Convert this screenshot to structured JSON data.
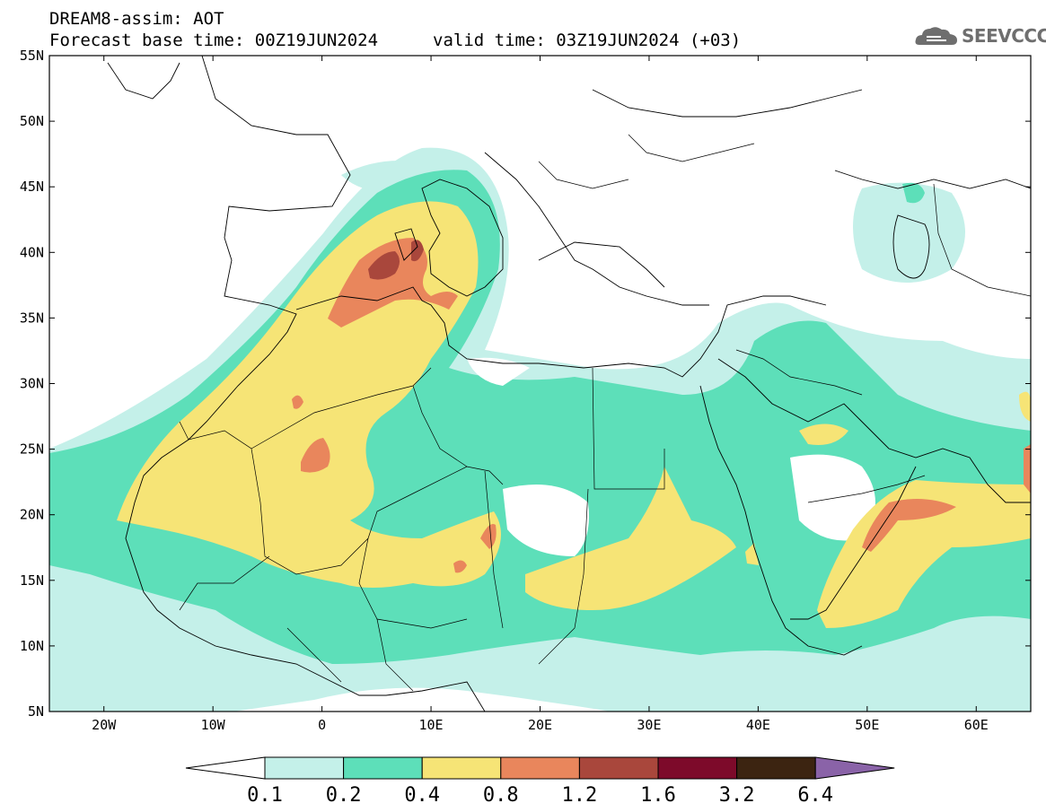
{
  "header": {
    "title_line1": "DREAM8-assim: AOT",
    "base_time": "Forecast base time: 00Z19JUN2024",
    "valid_time": "valid time: 03Z19JUN2024 (+03)",
    "logo_text": "SEEVCCC",
    "logo_icon": "cloud-icon"
  },
  "map": {
    "lon_range": [
      -25,
      65
    ],
    "lat_range": [
      5,
      55
    ],
    "lat_ticks": [
      {
        "v": 55,
        "label": "55N"
      },
      {
        "v": 50,
        "label": "50N"
      },
      {
        "v": 45,
        "label": "45N"
      },
      {
        "v": 40,
        "label": "40N"
      },
      {
        "v": 35,
        "label": "35N"
      },
      {
        "v": 30,
        "label": "30N"
      },
      {
        "v": 25,
        "label": "25N"
      },
      {
        "v": 20,
        "label": "20N"
      },
      {
        "v": 15,
        "label": "15N"
      },
      {
        "v": 10,
        "label": "10N"
      },
      {
        "v": 5,
        "label": "5N"
      }
    ],
    "lon_ticks": [
      {
        "v": -20,
        "label": "20W"
      },
      {
        "v": -10,
        "label": "10W"
      },
      {
        "v": 0,
        "label": "0"
      },
      {
        "v": 10,
        "label": "10E"
      },
      {
        "v": 20,
        "label": "20E"
      },
      {
        "v": 30,
        "label": "30E"
      },
      {
        "v": 40,
        "label": "40E"
      },
      {
        "v": 50,
        "label": "50E"
      },
      {
        "v": 60,
        "label": "60E"
      }
    ]
  },
  "colorbar": {
    "levels": [
      "0.1",
      "0.2",
      "0.4",
      "0.8",
      "1.2",
      "1.6",
      "3.2",
      "6.4"
    ],
    "colors": [
      "#ffffff",
      "#c4f0e9",
      "#5ddfb9",
      "#f6e476",
      "#e9865c",
      "#a9473c",
      "#7d0a2a",
      "#3c2411",
      "#8a63a8"
    ]
  }
}
